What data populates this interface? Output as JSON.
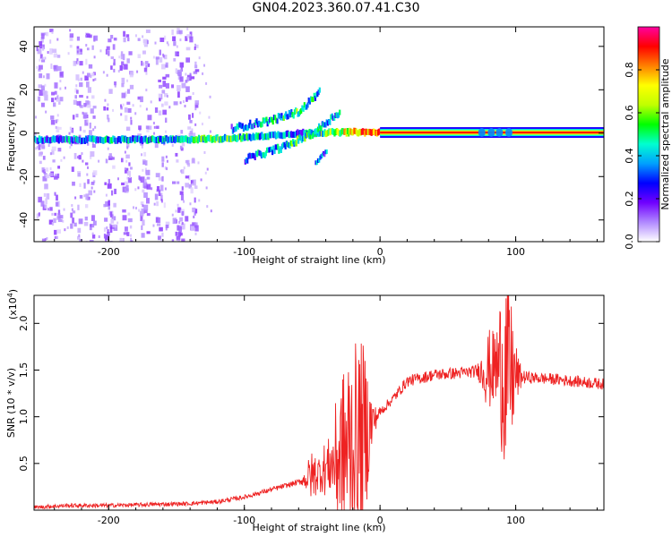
{
  "title": "GN04.2023.360.07.41.C30",
  "chart_data": [
    {
      "type": "heatmap",
      "xlabel": "Height of straight line (km)",
      "ylabel": "Frequency (Hz)",
      "xlim": [
        -255,
        165
      ],
      "ylim": [
        -50,
        49
      ],
      "x_ticks": [
        -200,
        -100,
        0,
        100
      ],
      "x_tick_labels": [
        "-200",
        "-100",
        "0",
        "100"
      ],
      "y_ticks": [
        -40,
        -20,
        0,
        20,
        40
      ],
      "y_tick_labels": [
        "-40",
        "-20",
        "0",
        "20",
        "40"
      ],
      "grid": false,
      "colorbar": {
        "label": "Normalized spectral amplitude",
        "range": [
          0,
          1
        ],
        "ticks": [
          0.0,
          0.2,
          0.4,
          0.6,
          0.8
        ],
        "tick_labels": [
          "0.0",
          "0.2",
          "0.4",
          "0.6",
          "0.8"
        ],
        "colormap": [
          "#ffffff",
          "#b088ff",
          "#7000ff",
          "#0000ff",
          "#00a0ff",
          "#00ffd0",
          "#00ff00",
          "#c0ff00",
          "#ffff00",
          "#ff8000",
          "#ff0000",
          "#ff00a0"
        ]
      },
      "main_trace": [
        {
          "x": -255,
          "y": -3,
          "a": 0.3
        },
        {
          "x": -200,
          "y": -3,
          "a": 0.35
        },
        {
          "x": -150,
          "y": -3,
          "a": 0.4
        },
        {
          "x": -120,
          "y": -2.5,
          "a": 0.5
        },
        {
          "x": -100,
          "y": -2,
          "a": 0.45
        },
        {
          "x": -60,
          "y": 0,
          "a": 0.3
        },
        {
          "x": -20,
          "y": 0.5,
          "a": 0.75
        },
        {
          "x": 0,
          "y": 0.3,
          "a": 0.85
        },
        {
          "x": 80,
          "y": 0.3,
          "a": 0.9
        },
        {
          "x": 165,
          "y": 0.3,
          "a": 0.9
        }
      ],
      "upper_branch": [
        {
          "x": -110,
          "y": 2,
          "a": 0.3
        },
        {
          "x": -80,
          "y": 6,
          "a": 0.4
        },
        {
          "x": -60,
          "y": 10,
          "a": 0.5
        },
        {
          "x": -45,
          "y": 19,
          "a": 0.35
        }
      ],
      "lower_branch": [
        {
          "x": -100,
          "y": -12,
          "a": 0.3
        },
        {
          "x": -70,
          "y": -6,
          "a": 0.45
        },
        {
          "x": -50,
          "y": 0,
          "a": 0.5
        },
        {
          "x": -30,
          "y": 10,
          "a": 0.35
        }
      ],
      "dip_branch": [
        {
          "x": -48,
          "y": -14,
          "a": 0.35
        },
        {
          "x": -40,
          "y": -8,
          "a": 0.3
        }
      ]
    },
    {
      "type": "line",
      "xlabel": "Height of straight line (km)",
      "ylabel": "SNR (10 * v/v)",
      "y_exponent": "(x10",
      "y_exponent_power": "4",
      "y_exponent_close": ")",
      "xlim": [
        -255,
        165
      ],
      "ylim": [
        0,
        2.3
      ],
      "x_ticks": [
        -200,
        -100,
        0,
        100
      ],
      "x_tick_labels": [
        "-200",
        "-100",
        "0",
        "100"
      ],
      "y_ticks": [
        0.5,
        1.0,
        1.5,
        2.0
      ],
      "y_tick_labels": [
        "0.5",
        "1.0",
        "1.5",
        "2.0"
      ],
      "grid": false,
      "line_color": "#ee2222",
      "series": [
        {
          "x": [
            -255,
            -230,
            -200,
            -170,
            -140,
            -120,
            -100,
            -80,
            -60,
            -45,
            -35,
            -28,
            -20,
            -15,
            -10,
            -5,
            0,
            10,
            20,
            40,
            60,
            80,
            90,
            95,
            100,
            110,
            130,
            150,
            165
          ],
          "values": [
            0.03,
            0.05,
            0.05,
            0.06,
            0.07,
            0.09,
            0.14,
            0.22,
            0.3,
            0.4,
            0.5,
            0.6,
            0.7,
            0.8,
            0.85,
            0.95,
            1.05,
            1.2,
            1.38,
            1.45,
            1.47,
            1.5,
            1.55,
            1.45,
            1.43,
            1.42,
            1.4,
            1.37,
            1.35
          ]
        }
      ],
      "spikes": [
        {
          "x": -50,
          "y": 0.6
        },
        {
          "x": -40,
          "y": 0.7
        },
        {
          "x": -30,
          "y": 1.3
        },
        {
          "x": -22,
          "y": 1.65
        },
        {
          "x": -15,
          "y": 1.45
        },
        {
          "x": -10,
          "y": 1.35
        },
        {
          "x": 80,
          "y": 1.85
        },
        {
          "x": 88,
          "y": 1.75
        },
        {
          "x": 92,
          "y": 2.27
        },
        {
          "x": 97,
          "y": 1.85
        }
      ]
    }
  ]
}
